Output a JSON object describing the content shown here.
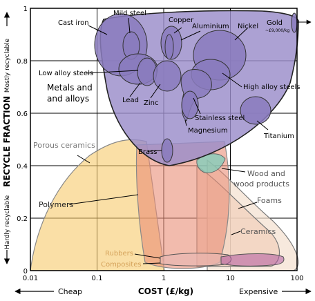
{
  "chart_data": {
    "type": "scatter",
    "xscale": "log",
    "xlim": [
      0.01,
      100
    ],
    "ylim": [
      0,
      1
    ],
    "grid": true,
    "xlabel": "COST (£/kg)",
    "ylabel": "RECYCLE FRACTION",
    "x_tick_labels": [
      "0.01",
      "0.1",
      "1",
      "10",
      "100"
    ],
    "y_tick_labels": [
      "0",
      "0.2",
      "0.4",
      "0.6",
      "0.8",
      "1"
    ],
    "x_end_labels": {
      "low": "Cheap",
      "high": "Expensive"
    },
    "y_end_labels": {
      "low": "Hardly recyclable",
      "high": "Mostly recyclable"
    },
    "families": [
      {
        "name": "Porous ceramics",
        "color": "#f6c96b",
        "x_range": [
          0.01,
          5
        ],
        "y_range": [
          0,
          0.5
        ]
      },
      {
        "name": "Polymers",
        "color": "#e98e76",
        "x_range": [
          0.6,
          5
        ],
        "y_range": [
          0.03,
          0.42
        ]
      },
      {
        "name": "Wood and wood products",
        "color": "#7ccfbc",
        "x_range": [
          1.5,
          9
        ],
        "y_range": [
          0.32,
          0.45
        ]
      },
      {
        "name": "Foams",
        "color": "#f3dfcf",
        "x_range": [
          3,
          100
        ],
        "y_range": [
          0,
          0.34
        ]
      },
      {
        "name": "Ceramics",
        "color": "#f1cfbb",
        "x_range": [
          2,
          70
        ],
        "y_range": [
          0.03,
          0.27
        ]
      },
      {
        "name": "Rubbers",
        "color": "#e8b7b0",
        "x_range": [
          1,
          30
        ],
        "y_range": [
          0.01,
          0.06
        ]
      },
      {
        "name": "Composites",
        "color": "#b05aa0",
        "x_range": [
          5,
          90
        ],
        "y_range": [
          0.02,
          0.05
        ]
      },
      {
        "name": "Metals and alloys",
        "color": "#9a8cc9",
        "x_range": [
          0.1,
          100
        ],
        "y_range": [
          0.41,
          0.99
        ]
      }
    ],
    "materials": [
      {
        "name": "Cast iron",
        "x": 0.2,
        "y": 0.86
      },
      {
        "name": "Mild steel",
        "x": 0.4,
        "y": 0.86
      },
      {
        "name": "Copper",
        "x": 2.0,
        "y": 0.85
      },
      {
        "name": "Aluminium",
        "x": 2.5,
        "y": 0.77
      },
      {
        "name": "Nickel",
        "x": 12,
        "y": 0.83
      },
      {
        "name": "Gold",
        "x": 90,
        "y": 0.94,
        "note": "~£9,000/kg"
      },
      {
        "name": "Low alloy steels",
        "x": 0.4,
        "y": 0.75
      },
      {
        "name": "Lead",
        "x": 0.65,
        "y": 0.75
      },
      {
        "name": "Zinc",
        "x": 1.5,
        "y": 0.75
      },
      {
        "name": "High alloy steels",
        "x": 15,
        "y": 0.74
      },
      {
        "name": "Stainless steel",
        "x": 5,
        "y": 0.62
      },
      {
        "name": "Magnesium",
        "x": 3.5,
        "y": 0.57
      },
      {
        "name": "Titanium",
        "x": 22,
        "y": 0.6
      },
      {
        "name": "Brass",
        "x": 1.4,
        "y": 0.45
      }
    ]
  }
}
